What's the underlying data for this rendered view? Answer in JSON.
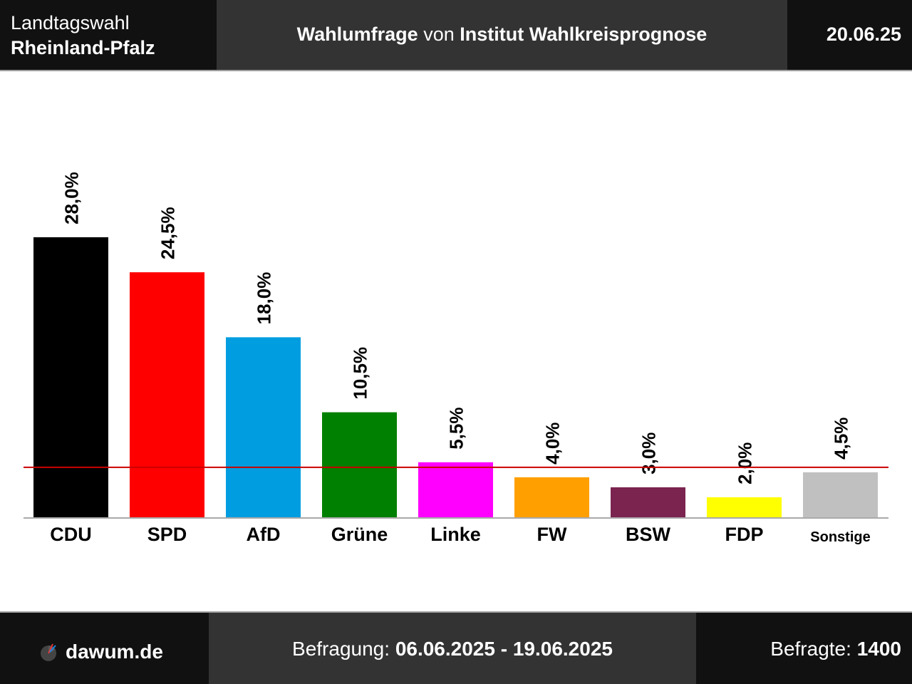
{
  "header": {
    "title_line1": "Landtagswahl",
    "title_line2": "Rheinland-Pfalz",
    "poll_label": "Wahlumfrage",
    "poll_connector": "von",
    "institute": "Institut Wahlkreisprognose",
    "date": "20.06.25"
  },
  "footer": {
    "brand": "dawum.de",
    "brand_icon": "dawum-logo-icon",
    "period_label": "Befragung:",
    "period_value": "06.06.2025 - 19.06.2025",
    "respondents_label": "Befragte:",
    "respondents_value": "1400"
  },
  "chart_data": {
    "type": "bar",
    "categories": [
      "CDU",
      "SPD",
      "AfD",
      "Grüne",
      "Linke",
      "FW",
      "BSW",
      "FDP",
      "Sonstige"
    ],
    "values": [
      28.0,
      24.5,
      18.0,
      10.5,
      5.5,
      4.0,
      3.0,
      2.0,
      4.5
    ],
    "value_labels": [
      "28,0%",
      "24,5%",
      "18,0%",
      "10,5%",
      "5,5%",
      "4,0%",
      "3,0%",
      "2,0%",
      "4,5%"
    ],
    "colors": [
      "#000000",
      "#ff0000",
      "#009ee0",
      "#008000",
      "#ff00ff",
      "#ffa000",
      "#7b2450",
      "#ffff00",
      "#c0c0c0"
    ],
    "threshold": 5,
    "threshold_color": "#cc0000",
    "ylim": [
      0,
      28.0
    ]
  }
}
